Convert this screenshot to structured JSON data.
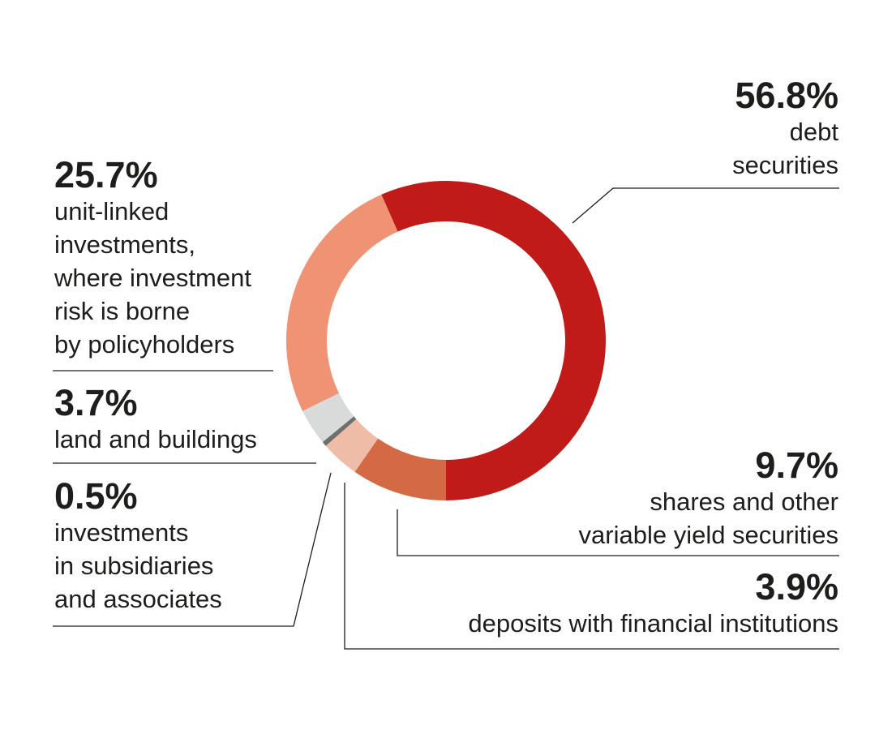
{
  "chart_data": {
    "type": "pie",
    "donut": true,
    "start_angle_note": "segments drawn clockwise, debt securities ending at bottom",
    "slices": [
      {
        "id": "debt",
        "label": "debt\nsecurities",
        "value": 56.8,
        "display": "56.8%",
        "color": "#c01a19"
      },
      {
        "id": "shares",
        "label": "shares and other \nvariable yield securities",
        "value": 9.7,
        "display": "9.7%",
        "color": "#d46a45"
      },
      {
        "id": "deposits",
        "label": "deposits with financial institutions",
        "value": 3.9,
        "display": "3.9%",
        "color": "#efbca8"
      },
      {
        "id": "subsidiaries",
        "label": "investments\nin subsidiaries\nand associates",
        "value": 0.5,
        "display": "0.5%",
        "color": "#6f6f6e"
      },
      {
        "id": "land",
        "label": "land and buildings",
        "value": 3.7,
        "display": "3.7%",
        "color": "#d9dada"
      },
      {
        "id": "unitlinked",
        "label": "unit-linked\ninvestments,\nwhere investment\nrisk is borne\nby policyholders",
        "value": 25.7,
        "display": "25.7%",
        "color": "#f09374"
      }
    ]
  }
}
